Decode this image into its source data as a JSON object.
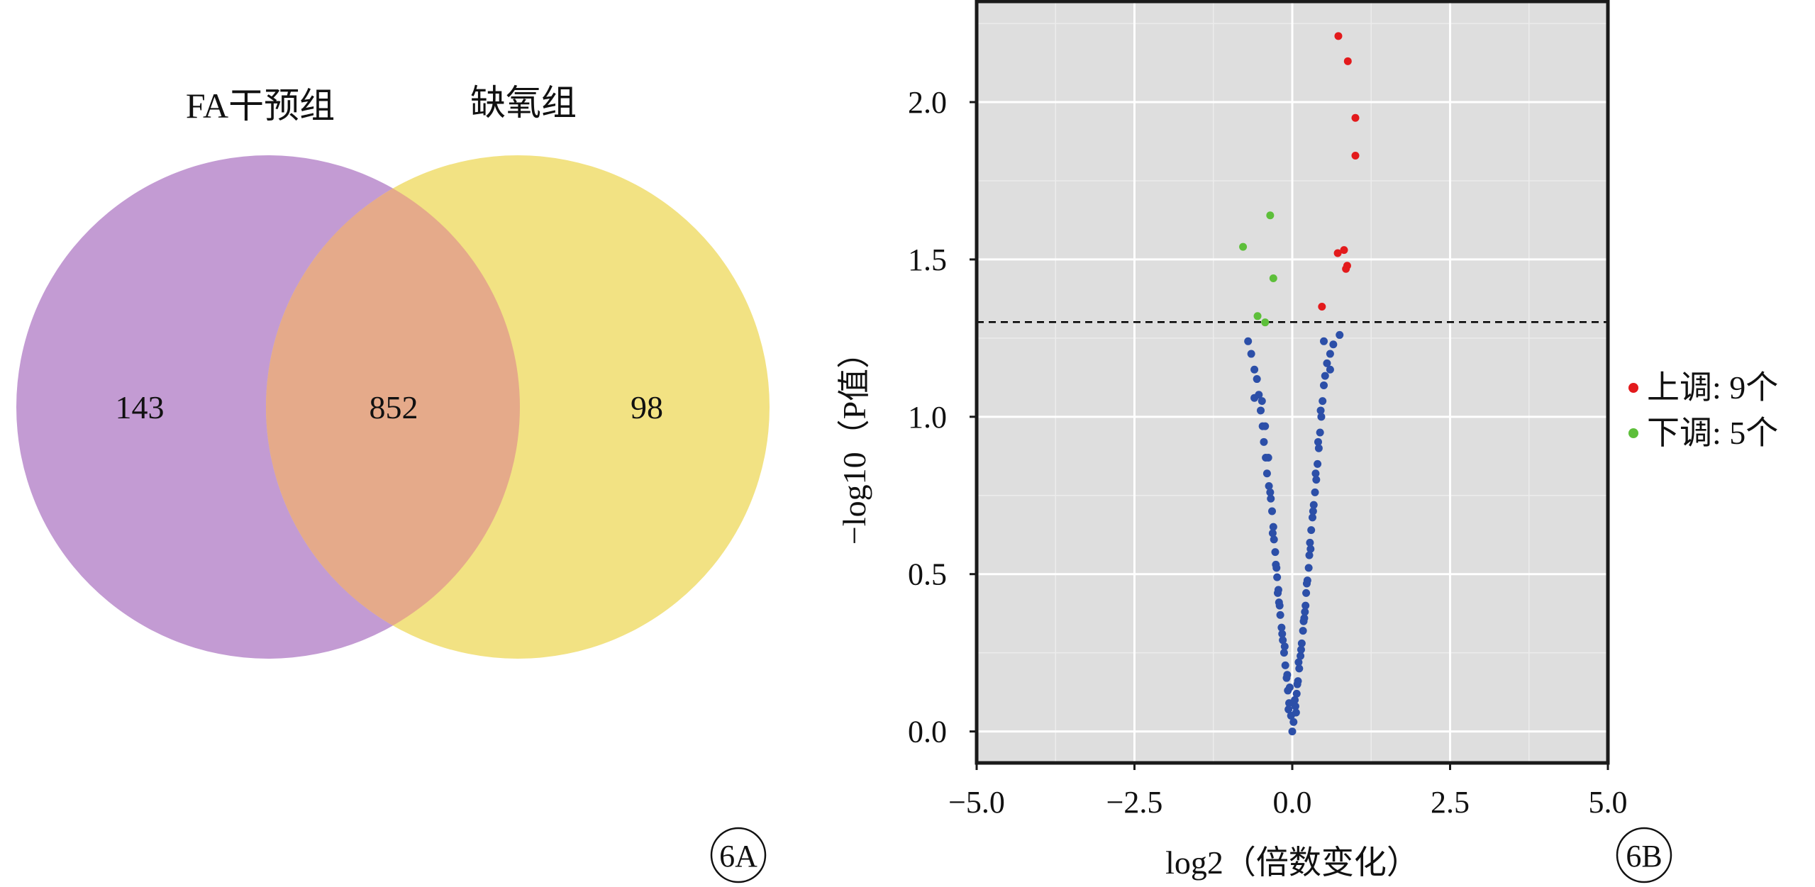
{
  "chart_data": [
    {
      "type": "venn",
      "sets": [
        {
          "name": "FA干预组",
          "only": "143",
          "color": "#c39bd3"
        },
        {
          "name": "缺氧组",
          "only": "98",
          "color": "#f2e283"
        }
      ],
      "intersection": "852",
      "intersection_color": "#e5aa8a",
      "panel_label": "6A"
    },
    {
      "type": "scatter",
      "xlabel": "log2（倍数变化）",
      "ylabel": "−log10（P值）",
      "xlim": [
        -5.0,
        5.0
      ],
      "ylim": [
        -0.1,
        2.32
      ],
      "x_ticks": [
        -5.0,
        -2.5,
        0.0,
        2.5,
        5.0
      ],
      "x_tick_labels": [
        "−5.0",
        "−2.5",
        "0.0",
        "2.5",
        "5.0"
      ],
      "y_ticks": [
        0.0,
        0.5,
        1.0,
        1.5,
        2.0
      ],
      "y_tick_labels": [
        "0.0",
        "0.5",
        "1.0",
        "1.5",
        "2.0"
      ],
      "threshold_y": 1.301,
      "grid": true,
      "legend_position": "right",
      "panel_label": "6B",
      "series": [
        {
          "name": "上调: 9个",
          "color": "#e31a1c",
          "points": [
            [
              0.73,
              2.21
            ],
            [
              0.88,
              2.13
            ],
            [
              1.0,
              1.95
            ],
            [
              1.0,
              1.83
            ],
            [
              0.72,
              1.52
            ],
            [
              0.82,
              1.53
            ],
            [
              0.85,
              1.47
            ],
            [
              0.87,
              1.48
            ],
            [
              0.47,
              1.35
            ]
          ]
        },
        {
          "name": "下调: 5个",
          "color": "#5dbf3a",
          "points": [
            [
              -0.35,
              1.64
            ],
            [
              -0.78,
              1.54
            ],
            [
              -0.3,
              1.44
            ],
            [
              -0.55,
              1.32
            ],
            [
              -0.43,
              1.3
            ]
          ]
        },
        {
          "name": "",
          "color": "#2c4fa8",
          "points": [
            [
              0.0,
              0.0
            ],
            [
              0.02,
              0.03
            ],
            [
              -0.02,
              0.05
            ],
            [
              0.05,
              0.08
            ],
            [
              -0.05,
              0.09
            ],
            [
              0.07,
              0.12
            ],
            [
              -0.07,
              0.13
            ],
            [
              0.09,
              0.16
            ],
            [
              -0.09,
              0.17
            ],
            [
              0.11,
              0.2
            ],
            [
              -0.11,
              0.21
            ],
            [
              0.13,
              0.24
            ],
            [
              -0.13,
              0.25
            ],
            [
              0.15,
              0.28
            ],
            [
              -0.15,
              0.29
            ],
            [
              0.17,
              0.32
            ],
            [
              -0.17,
              0.33
            ],
            [
              0.19,
              0.36
            ],
            [
              -0.19,
              0.37
            ],
            [
              0.21,
              0.4
            ],
            [
              -0.21,
              0.41
            ],
            [
              0.22,
              0.44
            ],
            [
              -0.22,
              0.45
            ],
            [
              0.24,
              0.48
            ],
            [
              -0.24,
              0.49
            ],
            [
              0.26,
              0.52
            ],
            [
              -0.26,
              0.53
            ],
            [
              0.27,
              0.56
            ],
            [
              -0.27,
              0.57
            ],
            [
              0.28,
              0.6
            ],
            [
              -0.29,
              0.61
            ],
            [
              0.3,
              0.64
            ],
            [
              -0.3,
              0.65
            ],
            [
              0.32,
              0.68
            ],
            [
              -0.32,
              0.7
            ],
            [
              0.34,
              0.72
            ],
            [
              -0.34,
              0.74
            ],
            [
              0.36,
              0.76
            ],
            [
              -0.37,
              0.78
            ],
            [
              0.38,
              0.8
            ],
            [
              -0.4,
              0.82
            ],
            [
              0.4,
              0.85
            ],
            [
              -0.42,
              0.87
            ],
            [
              0.42,
              0.9
            ],
            [
              -0.45,
              0.92
            ],
            [
              0.44,
              0.95
            ],
            [
              -0.47,
              0.97
            ],
            [
              0.46,
              1.0
            ],
            [
              -0.5,
              1.02
            ],
            [
              0.48,
              1.05
            ],
            [
              -0.53,
              1.07
            ],
            [
              0.5,
              1.1
            ],
            [
              -0.56,
              1.12
            ],
            [
              0.52,
              1.13
            ],
            [
              -0.6,
              1.15
            ],
            [
              0.55,
              1.17
            ],
            [
              -0.65,
              1.2
            ],
            [
              0.6,
              1.2
            ],
            [
              -0.7,
              1.24
            ],
            [
              0.65,
              1.23
            ],
            [
              0.75,
              1.26
            ],
            [
              0.5,
              1.24
            ],
            [
              -0.6,
              1.06
            ],
            [
              0.6,
              1.15
            ],
            [
              0.04,
              0.1
            ],
            [
              -0.04,
              0.14
            ],
            [
              0.1,
              0.22
            ],
            [
              -0.12,
              0.27
            ],
            [
              0.18,
              0.35
            ],
            [
              -0.2,
              0.4
            ],
            [
              0.23,
              0.47
            ],
            [
              -0.25,
              0.52
            ],
            [
              0.29,
              0.58
            ],
            [
              -0.31,
              0.63
            ],
            [
              0.33,
              0.7
            ],
            [
              -0.35,
              0.76
            ],
            [
              0.37,
              0.82
            ],
            [
              -0.38,
              0.87
            ],
            [
              0.41,
              0.92
            ],
            [
              -0.43,
              0.97
            ],
            [
              0.45,
              1.02
            ],
            [
              -0.48,
              1.05
            ],
            [
              0.06,
              0.06
            ],
            [
              -0.06,
              0.07
            ],
            [
              0.08,
              0.15
            ],
            [
              -0.08,
              0.18
            ],
            [
              0.14,
              0.26
            ],
            [
              -0.16,
              0.31
            ],
            [
              0.2,
              0.38
            ],
            [
              -0.23,
              0.44
            ]
          ]
        }
      ]
    }
  ]
}
